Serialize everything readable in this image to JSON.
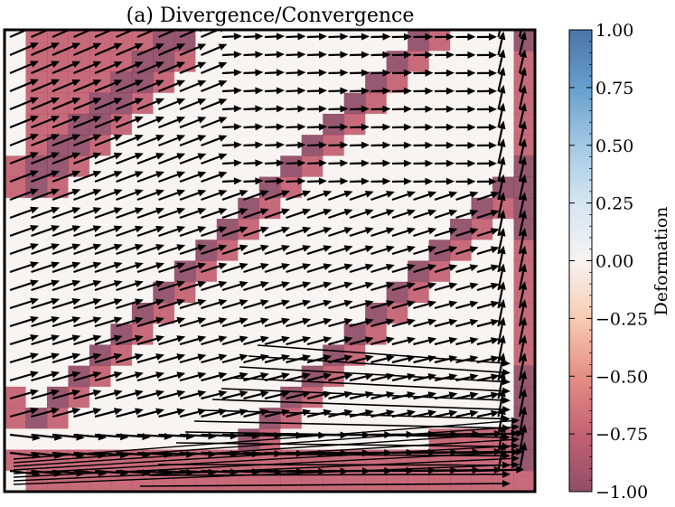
{
  "chart_data": {
    "type": "heatmap",
    "title": "(a) Divergence/Convergence",
    "overlay": "quiver",
    "grid": {
      "rows": 22,
      "cols": 25
    },
    "colorbar": {
      "label": "Deformation",
      "range": [
        -1.0,
        1.0
      ],
      "ticks": [
        "1.00",
        "0.75",
        "0.50",
        "0.25",
        "0.00",
        "−0.25",
        "−0.50",
        "−0.75",
        "−1.00"
      ],
      "ticks_values": [
        1.0,
        0.75,
        0.5,
        0.25,
        0.0,
        -0.25,
        -0.5,
        -0.75,
        -1.0
      ],
      "colormap_stops": [
        {
          "v": -1.0,
          "color": "#7d2e4e"
        },
        {
          "v": -0.75,
          "color": "#b9465a"
        },
        {
          "v": -0.5,
          "color": "#e07a6f"
        },
        {
          "v": -0.25,
          "color": "#f6c3a6"
        },
        {
          "v": 0.0,
          "color": "#f6f1ef"
        },
        {
          "v": 0.25,
          "color": "#cde1ee"
        },
        {
          "v": 0.5,
          "color": "#93c0de"
        },
        {
          "v": 0.75,
          "color": "#4b8fc4"
        },
        {
          "v": 1.0,
          "color": "#2a5d96"
        }
      ],
      "cell_alpha": 0.8
    },
    "cell_values": {
      "background": 0.0,
      "strong": -1.0,
      "moderate": -0.75
    },
    "xlabel": "",
    "ylabel": ""
  }
}
